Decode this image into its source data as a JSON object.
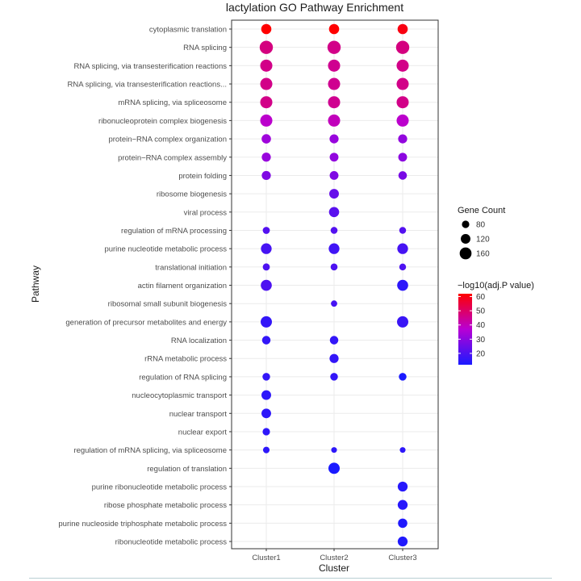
{
  "chart_data": {
    "type": "scatter",
    "title": "lactylation GO Pathway Enrichment",
    "xlabel": "Cluster",
    "ylabel": "Pathway",
    "x_categories": [
      "Cluster1",
      "Cluster2",
      "Cluster3"
    ],
    "y_categories": [
      "cytoplasmic translation",
      "RNA splicing",
      "RNA splicing, via transesterification reactions",
      "RNA splicing, via transesterification reactions...",
      "mRNA splicing, via spliceosome",
      "ribonucleoprotein complex biogenesis",
      "protein−RNA complex organization",
      "protein−RNA complex assembly",
      "protein folding",
      "ribosome biogenesis",
      "viral process",
      "regulation of mRNA processing",
      "purine nucleotide metabolic process",
      "translational initiation",
      "actin filament organization",
      "ribosomal small subunit biogenesis",
      "generation of precursor metabolites and energy",
      "RNA localization",
      "rRNA metabolic process",
      "regulation of RNA splicing",
      "nucleocytoplasmic transport",
      "nuclear transport",
      "nuclear export",
      "regulation of mRNA splicing, via spliceosome",
      "regulation of translation",
      "purine ribonucleotide metabolic process",
      "ribose phosphate metabolic process",
      "purine nucleoside triphosphate metabolic process",
      "ribonucleotide metabolic process"
    ],
    "points": [
      {
        "pathway": "cytoplasmic translation",
        "cluster": "Cluster1",
        "gene_count": 130,
        "neg_log10_padj": 62
      },
      {
        "pathway": "cytoplasmic translation",
        "cluster": "Cluster2",
        "gene_count": 130,
        "neg_log10_padj": 62
      },
      {
        "pathway": "cytoplasmic translation",
        "cluster": "Cluster3",
        "gene_count": 130,
        "neg_log10_padj": 60
      },
      {
        "pathway": "RNA splicing",
        "cluster": "Cluster1",
        "gene_count": 185,
        "neg_log10_padj": 47
      },
      {
        "pathway": "RNA splicing",
        "cluster": "Cluster2",
        "gene_count": 185,
        "neg_log10_padj": 46
      },
      {
        "pathway": "RNA splicing",
        "cluster": "Cluster3",
        "gene_count": 185,
        "neg_log10_padj": 47
      },
      {
        "pathway": "RNA splicing, via transesterification reactions",
        "cluster": "Cluster1",
        "gene_count": 165,
        "neg_log10_padj": 46
      },
      {
        "pathway": "RNA splicing, via transesterification reactions",
        "cluster": "Cluster2",
        "gene_count": 165,
        "neg_log10_padj": 45
      },
      {
        "pathway": "RNA splicing, via transesterification reactions",
        "cluster": "Cluster3",
        "gene_count": 165,
        "neg_log10_padj": 46
      },
      {
        "pathway": "RNA splicing, via transesterification reactions...",
        "cluster": "Cluster1",
        "gene_count": 165,
        "neg_log10_padj": 46
      },
      {
        "pathway": "RNA splicing, via transesterification reactions...",
        "cluster": "Cluster2",
        "gene_count": 165,
        "neg_log10_padj": 45
      },
      {
        "pathway": "RNA splicing, via transesterification reactions...",
        "cluster": "Cluster3",
        "gene_count": 165,
        "neg_log10_padj": 46
      },
      {
        "pathway": "mRNA splicing, via spliceosome",
        "cluster": "Cluster1",
        "gene_count": 165,
        "neg_log10_padj": 46
      },
      {
        "pathway": "mRNA splicing, via spliceosome",
        "cluster": "Cluster2",
        "gene_count": 165,
        "neg_log10_padj": 45
      },
      {
        "pathway": "mRNA splicing, via spliceosome",
        "cluster": "Cluster3",
        "gene_count": 165,
        "neg_log10_padj": 46
      },
      {
        "pathway": "ribonucleoprotein complex biogenesis",
        "cluster": "Cluster1",
        "gene_count": 165,
        "neg_log10_padj": 38
      },
      {
        "pathway": "ribonucleoprotein complex biogenesis",
        "cluster": "Cluster2",
        "gene_count": 165,
        "neg_log10_padj": 40
      },
      {
        "pathway": "ribonucleoprotein complex biogenesis",
        "cluster": "Cluster3",
        "gene_count": 165,
        "neg_log10_padj": 38
      },
      {
        "pathway": "protein−RNA complex organization",
        "cluster": "Cluster1",
        "gene_count": 115,
        "neg_log10_padj": 33
      },
      {
        "pathway": "protein−RNA complex organization",
        "cluster": "Cluster2",
        "gene_count": 110,
        "neg_log10_padj": 32
      },
      {
        "pathway": "protein−RNA complex organization",
        "cluster": "Cluster3",
        "gene_count": 110,
        "neg_log10_padj": 31
      },
      {
        "pathway": "protein−RNA complex assembly",
        "cluster": "Cluster1",
        "gene_count": 110,
        "neg_log10_padj": 32
      },
      {
        "pathway": "protein−RNA complex assembly",
        "cluster": "Cluster2",
        "gene_count": 105,
        "neg_log10_padj": 31
      },
      {
        "pathway": "protein−RNA complex assembly",
        "cluster": "Cluster3",
        "gene_count": 105,
        "neg_log10_padj": 30
      },
      {
        "pathway": "protein folding",
        "cluster": "Cluster1",
        "gene_count": 110,
        "neg_log10_padj": 28
      },
      {
        "pathway": "protein folding",
        "cluster": "Cluster2",
        "gene_count": 105,
        "neg_log10_padj": 28
      },
      {
        "pathway": "protein folding",
        "cluster": "Cluster3",
        "gene_count": 100,
        "neg_log10_padj": 27
      },
      {
        "pathway": "ribosome biogenesis",
        "cluster": "Cluster2",
        "gene_count": 120,
        "neg_log10_padj": 24
      },
      {
        "pathway": "viral process",
        "cluster": "Cluster2",
        "gene_count": 130,
        "neg_log10_padj": 22
      },
      {
        "pathway": "regulation of mRNA processing",
        "cluster": "Cluster1",
        "gene_count": 75,
        "neg_log10_padj": 21
      },
      {
        "pathway": "regulation of mRNA processing",
        "cluster": "Cluster2",
        "gene_count": 72,
        "neg_log10_padj": 21
      },
      {
        "pathway": "regulation of mRNA processing",
        "cluster": "Cluster3",
        "gene_count": 70,
        "neg_log10_padj": 21
      },
      {
        "pathway": "purine nucleotide metabolic process",
        "cluster": "Cluster1",
        "gene_count": 140,
        "neg_log10_padj": 19
      },
      {
        "pathway": "purine nucleotide metabolic process",
        "cluster": "Cluster2",
        "gene_count": 140,
        "neg_log10_padj": 18
      },
      {
        "pathway": "purine nucleotide metabolic process",
        "cluster": "Cluster3",
        "gene_count": 140,
        "neg_log10_padj": 19
      },
      {
        "pathway": "translational initiation",
        "cluster": "Cluster1",
        "gene_count": 75,
        "neg_log10_padj": 20
      },
      {
        "pathway": "translational initiation",
        "cluster": "Cluster2",
        "gene_count": 72,
        "neg_log10_padj": 20
      },
      {
        "pathway": "translational initiation",
        "cluster": "Cluster3",
        "gene_count": 70,
        "neg_log10_padj": 20
      },
      {
        "pathway": "actin filament organization",
        "cluster": "Cluster1",
        "gene_count": 145,
        "neg_log10_padj": 20
      },
      {
        "pathway": "actin filament organization",
        "cluster": "Cluster3",
        "gene_count": 145,
        "neg_log10_padj": 15
      },
      {
        "pathway": "ribosomal small subunit biogenesis",
        "cluster": "Cluster2",
        "gene_count": 60,
        "neg_log10_padj": 19
      },
      {
        "pathway": "generation of precursor metabolites and energy",
        "cluster": "Cluster1",
        "gene_count": 150,
        "neg_log10_padj": 16
      },
      {
        "pathway": "generation of precursor metabolites and energy",
        "cluster": "Cluster3",
        "gene_count": 150,
        "neg_log10_padj": 17
      },
      {
        "pathway": "RNA localization",
        "cluster": "Cluster1",
        "gene_count": 100,
        "neg_log10_padj": 16
      },
      {
        "pathway": "RNA localization",
        "cluster": "Cluster2",
        "gene_count": 100,
        "neg_log10_padj": 16
      },
      {
        "pathway": "rRNA metabolic process",
        "cluster": "Cluster2",
        "gene_count": 110,
        "neg_log10_padj": 16
      },
      {
        "pathway": "regulation of RNA splicing",
        "cluster": "Cluster1",
        "gene_count": 85,
        "neg_log10_padj": 16
      },
      {
        "pathway": "regulation of RNA splicing",
        "cluster": "Cluster2",
        "gene_count": 85,
        "neg_log10_padj": 16
      },
      {
        "pathway": "regulation of RNA splicing",
        "cluster": "Cluster3",
        "gene_count": 85,
        "neg_log10_padj": 12
      },
      {
        "pathway": "nucleocytoplasmic transport",
        "cluster": "Cluster1",
        "gene_count": 120,
        "neg_log10_padj": 15
      },
      {
        "pathway": "nuclear transport",
        "cluster": "Cluster1",
        "gene_count": 120,
        "neg_log10_padj": 15
      },
      {
        "pathway": "nuclear export",
        "cluster": "Cluster1",
        "gene_count": 80,
        "neg_log10_padj": 15
      },
      {
        "pathway": "regulation of mRNA splicing, via spliceosome",
        "cluster": "Cluster1",
        "gene_count": 65,
        "neg_log10_padj": 15
      },
      {
        "pathway": "regulation of mRNA splicing, via spliceosome",
        "cluster": "Cluster2",
        "gene_count": 50,
        "neg_log10_padj": 15
      },
      {
        "pathway": "regulation of mRNA splicing, via spliceosome",
        "cluster": "Cluster3",
        "gene_count": 50,
        "neg_log10_padj": 15
      },
      {
        "pathway": "regulation of translation",
        "cluster": "Cluster2",
        "gene_count": 150,
        "neg_log10_padj": 12
      },
      {
        "pathway": "purine ribonucleotide metabolic process",
        "cluster": "Cluster3",
        "gene_count": 125,
        "neg_log10_padj": 14
      },
      {
        "pathway": "ribose phosphate metabolic process",
        "cluster": "Cluster3",
        "gene_count": 125,
        "neg_log10_padj": 14
      },
      {
        "pathway": "purine nucleoside triphosphate metabolic process",
        "cluster": "Cluster3",
        "gene_count": 115,
        "neg_log10_padj": 13
      },
      {
        "pathway": "ribonucleotide metabolic process",
        "cluster": "Cluster3",
        "gene_count": 125,
        "neg_log10_padj": 13
      }
    ],
    "size_legend": {
      "title": "Gene Count",
      "breaks": [
        80,
        120,
        160
      ]
    },
    "color_legend": {
      "title": "−log10(adj.P value)",
      "breaks": [
        20,
        30,
        40,
        50,
        60
      ],
      "range": [
        12,
        62
      ],
      "low_color": "#1a1aff",
      "mid_color": "#b800d4",
      "high_color": "#ff0000"
    },
    "legend_position": "right",
    "grid": true,
    "background": "#ffffff",
    "gridline_color": "#ebebeb"
  }
}
